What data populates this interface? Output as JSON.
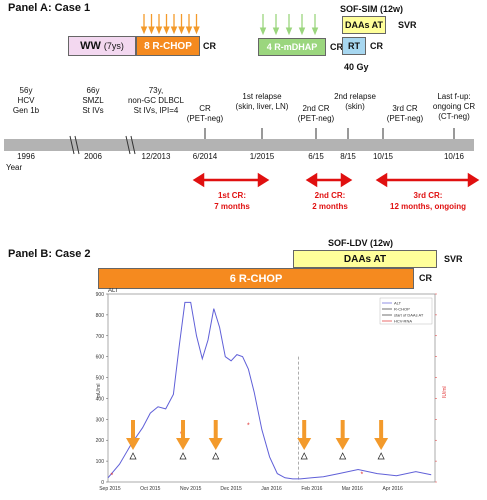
{
  "panelA": {
    "title": "Panel A: Case 1",
    "ww_label": "WW",
    "ww_years": "(7ys)",
    "rchop_label": "8 R-CHOP",
    "cr_after_rchop": "CR",
    "rmdhap_label": "4 R-mDHAP",
    "cr_after_rmdhap": "CR",
    "sofsim_label": "SOF-SIM (12w)",
    "daas_label": "DAAs AT",
    "svr_label": "SVR",
    "rt_label": "RT",
    "cr_after_rt": "CR",
    "gy_label": "40 Gy",
    "milestones": [
      {
        "lines": [
          "56y",
          "HCV",
          "Gen 1b"
        ]
      },
      {
        "lines": [
          "66y",
          "SMZL",
          "St IVs"
        ]
      },
      {
        "lines": [
          "73y,",
          "non-GC DLBCL",
          "St IVs, IPI=4"
        ]
      },
      {
        "lines": [
          "CR",
          "(PET-neg)"
        ]
      },
      {
        "lines": [
          "1st relapse",
          "(skin, liver, LN)"
        ]
      },
      {
        "lines": [
          "2nd CR",
          "(PET-neg)"
        ]
      },
      {
        "lines": [
          "2nd relapse",
          "(skin)"
        ]
      },
      {
        "lines": [
          "3rd CR",
          "(PET-neg)"
        ]
      },
      {
        "lines": [
          "Last f-up:",
          "ongoing CR",
          "(CT-neg)"
        ]
      }
    ],
    "dates": [
      "1996",
      "2006",
      "12/2013",
      "6/2014",
      "1/2015",
      "6/15",
      "8/15",
      "10/15",
      "10/16"
    ],
    "year_label": "Year",
    "cr_periods": [
      {
        "lines": [
          "1st CR:",
          "7 months"
        ]
      },
      {
        "lines": [
          "2nd CR:",
          "2 months"
        ]
      },
      {
        "lines": [
          "3rd CR:",
          "12 months, ongoing"
        ]
      }
    ]
  },
  "panelB": {
    "title": "Panel B: Case 2",
    "sofldv_label": "SOF-LDV (12w)",
    "daas_label": "DAAs AT",
    "svr_label": "SVR",
    "rchop_label": "6 R-CHOP",
    "cr_label": "CR",
    "chart_title_left": "ALT",
    "chart_legend": [
      "ALT",
      "R-CHOP",
      "start of DAAs AT",
      "HCV-RNA"
    ],
    "ylabel_left": "mU/ml",
    "ylabel_right": "IU/ml",
    "xticks": [
      "Sep 2015",
      "Oct 2015",
      "Nov 2015",
      "Dec 2015",
      "Jan 2016",
      "Feb 2016",
      "Mar 2016",
      "Apr 2016"
    ],
    "yticks_left": [
      "0",
      "100",
      "200",
      "300",
      "400",
      "500",
      "600",
      "700",
      "800",
      "900"
    ],
    "colors": {
      "alt": "#6060d8",
      "hcv": "#e03030",
      "arrow": "#f39a2b"
    }
  },
  "chart_data": {
    "type": "line",
    "series": [
      {
        "name": "ALT",
        "x": [
          0.0,
          0.3,
          0.6,
          0.9,
          1.1,
          1.3,
          1.5,
          1.7,
          1.85,
          2.0,
          2.15,
          2.3,
          2.45,
          2.6,
          2.75,
          2.9,
          3.05,
          3.2,
          3.35,
          3.5,
          3.65,
          3.8,
          4.0,
          4.2,
          4.4,
          4.6,
          4.8,
          5.0,
          5.3,
          5.6,
          6.0,
          6.5,
          7.0,
          7.5,
          8.0,
          8.4
        ],
        "y": [
          20,
          85,
          180,
          260,
          330,
          360,
          350,
          420,
          650,
          860,
          860,
          700,
          590,
          680,
          830,
          740,
          600,
          580,
          610,
          600,
          540,
          430,
          250,
          120,
          40,
          20,
          15,
          15,
          20,
          25,
          40,
          60,
          40,
          30,
          50,
          35
        ]
      },
      {
        "name": "HCV-RNA",
        "x": [
          0.1,
          1.9,
          3.65,
          4.15,
          6.6
        ],
        "y": [
          30,
          230,
          270,
          930,
          35
        ]
      }
    ],
    "rchop_markers_x": [
      0.65,
      1.95,
      2.8,
      5.1,
      6.1,
      7.1
    ],
    "daas_start_x": 4.95,
    "xlim": [
      0,
      8.5
    ],
    "ylim": [
      0,
      900
    ]
  }
}
